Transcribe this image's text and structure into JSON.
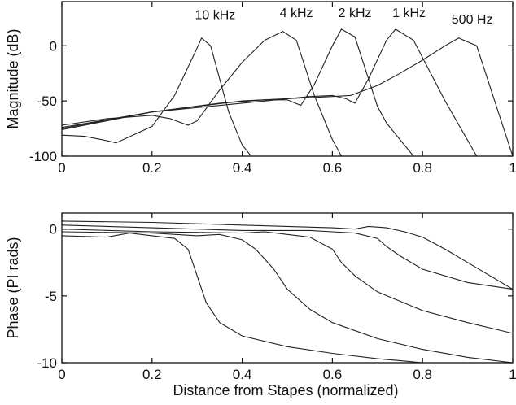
{
  "chart_data": [
    {
      "type": "line",
      "panel": "magnitude",
      "xlabel": "",
      "ylabel": "Magnitude (dB)",
      "xlim": [
        0,
        1
      ],
      "ylim": [
        -100,
        40
      ],
      "xticks": [
        "0",
        "0.2",
        "0.4",
        "0.6",
        "0.8",
        "1"
      ],
      "yticks": [
        "-100",
        "-50",
        "0"
      ],
      "grid": false,
      "annotations": [
        {
          "text": "10 kHz",
          "x": 0.34,
          "y": 24
        },
        {
          "text": "4 kHz",
          "x": 0.52,
          "y": 26
        },
        {
          "text": "2 kHz",
          "x": 0.65,
          "y": 26
        },
        {
          "text": "1 kHz",
          "x": 0.77,
          "y": 26
        },
        {
          "text": "500 Hz",
          "x": 0.91,
          "y": 20
        }
      ],
      "series": [
        {
          "x": [
            0,
            0.05,
            0.1,
            0.12,
            0.2,
            0.25,
            0.3,
            0.31,
            0.33,
            0.37,
            0.4,
            0.42
          ],
          "y": [
            -81,
            -82,
            -86,
            -88,
            -73,
            -45,
            -2,
            7,
            0,
            -60,
            -90,
            -100
          ]
        },
        {
          "x": [
            0,
            0.1,
            0.2,
            0.24,
            0.28,
            0.3,
            0.35,
            0.4,
            0.45,
            0.49,
            0.52,
            0.56,
            0.6,
            0.62
          ],
          "y": [
            -72,
            -66,
            -63,
            -66,
            -72,
            -68,
            -40,
            -15,
            5,
            13,
            5,
            -45,
            -85,
            -100
          ]
        },
        {
          "x": [
            0,
            0.2,
            0.35,
            0.45,
            0.5,
            0.53,
            0.56,
            0.6,
            0.62,
            0.65,
            0.7,
            0.72,
            0.78
          ],
          "y": [
            -74,
            -60,
            -52,
            -49,
            -49,
            -54,
            -35,
            0,
            15,
            8,
            -55,
            -70,
            -100
          ]
        },
        {
          "x": [
            0,
            0.2,
            0.4,
            0.55,
            0.6,
            0.63,
            0.65,
            0.68,
            0.72,
            0.74,
            0.78,
            0.85,
            0.92
          ],
          "y": [
            -76,
            -60,
            -52,
            -46,
            -45,
            -48,
            -52,
            -30,
            5,
            15,
            5,
            -50,
            -100
          ]
        },
        {
          "x": [
            0,
            0.2,
            0.4,
            0.6,
            0.64,
            0.7,
            0.75,
            0.8,
            0.85,
            0.88,
            0.92,
            0.96,
            1.0
          ],
          "y": [
            -75,
            -60,
            -50,
            -46,
            -45,
            -36,
            -25,
            -13,
            0,
            7,
            0,
            -50,
            -100
          ]
        }
      ]
    },
    {
      "type": "line",
      "panel": "phase",
      "xlabel": "Distance from Stapes (normalized)",
      "ylabel": "Phase (PI rads)",
      "xlim": [
        0,
        1
      ],
      "ylim": [
        -10,
        1.2
      ],
      "xticks": [
        "0",
        "0.2",
        "0.4",
        "0.6",
        "0.8",
        "1"
      ],
      "yticks": [
        "-10",
        "-5",
        "0"
      ],
      "grid": false,
      "series": [
        {
          "x": [
            0,
            0.1,
            0.15,
            0.2,
            0.25,
            0.28,
            0.3,
            0.32,
            0.35,
            0.4,
            0.5,
            0.6,
            0.7,
            0.8,
            0.85
          ],
          "y": [
            -0.5,
            -0.6,
            -0.3,
            -0.5,
            -0.7,
            -1.5,
            -3.5,
            -5.5,
            -7.0,
            -8.0,
            -8.8,
            -9.3,
            -9.7,
            -10.0,
            -10.0
          ]
        },
        {
          "x": [
            0,
            0.2,
            0.3,
            0.35,
            0.4,
            0.43,
            0.47,
            0.5,
            0.55,
            0.6,
            0.7,
            0.8,
            0.9,
            1.0
          ],
          "y": [
            -0.2,
            -0.3,
            -0.5,
            -0.4,
            -0.8,
            -1.5,
            -3.0,
            -4.5,
            -6.0,
            -7.0,
            -8.2,
            -9.0,
            -9.6,
            -10.0
          ]
        },
        {
          "x": [
            0,
            0.2,
            0.4,
            0.45,
            0.5,
            0.55,
            0.6,
            0.62,
            0.65,
            0.7,
            0.8,
            0.9,
            1.0
          ],
          "y": [
            0.0,
            -0.2,
            -0.3,
            -0.2,
            -0.4,
            -0.6,
            -1.5,
            -2.5,
            -3.5,
            -4.7,
            -6.1,
            -7.0,
            -7.8
          ]
        },
        {
          "x": [
            0,
            0.2,
            0.4,
            0.55,
            0.6,
            0.65,
            0.7,
            0.72,
            0.75,
            0.8,
            0.9,
            1.0
          ],
          "y": [
            0.3,
            0.1,
            -0.1,
            -0.1,
            -0.2,
            -0.3,
            -0.7,
            -1.3,
            -2.0,
            -3.0,
            -4.0,
            -4.5
          ]
        },
        {
          "x": [
            0,
            0.2,
            0.4,
            0.6,
            0.65,
            0.68,
            0.72,
            0.76,
            0.8,
            0.85,
            0.9,
            0.95,
            1.0
          ],
          "y": [
            0.6,
            0.5,
            0.3,
            0.1,
            0.0,
            0.2,
            0.1,
            -0.2,
            -0.6,
            -1.5,
            -2.5,
            -3.5,
            -4.5
          ]
        }
      ]
    }
  ]
}
